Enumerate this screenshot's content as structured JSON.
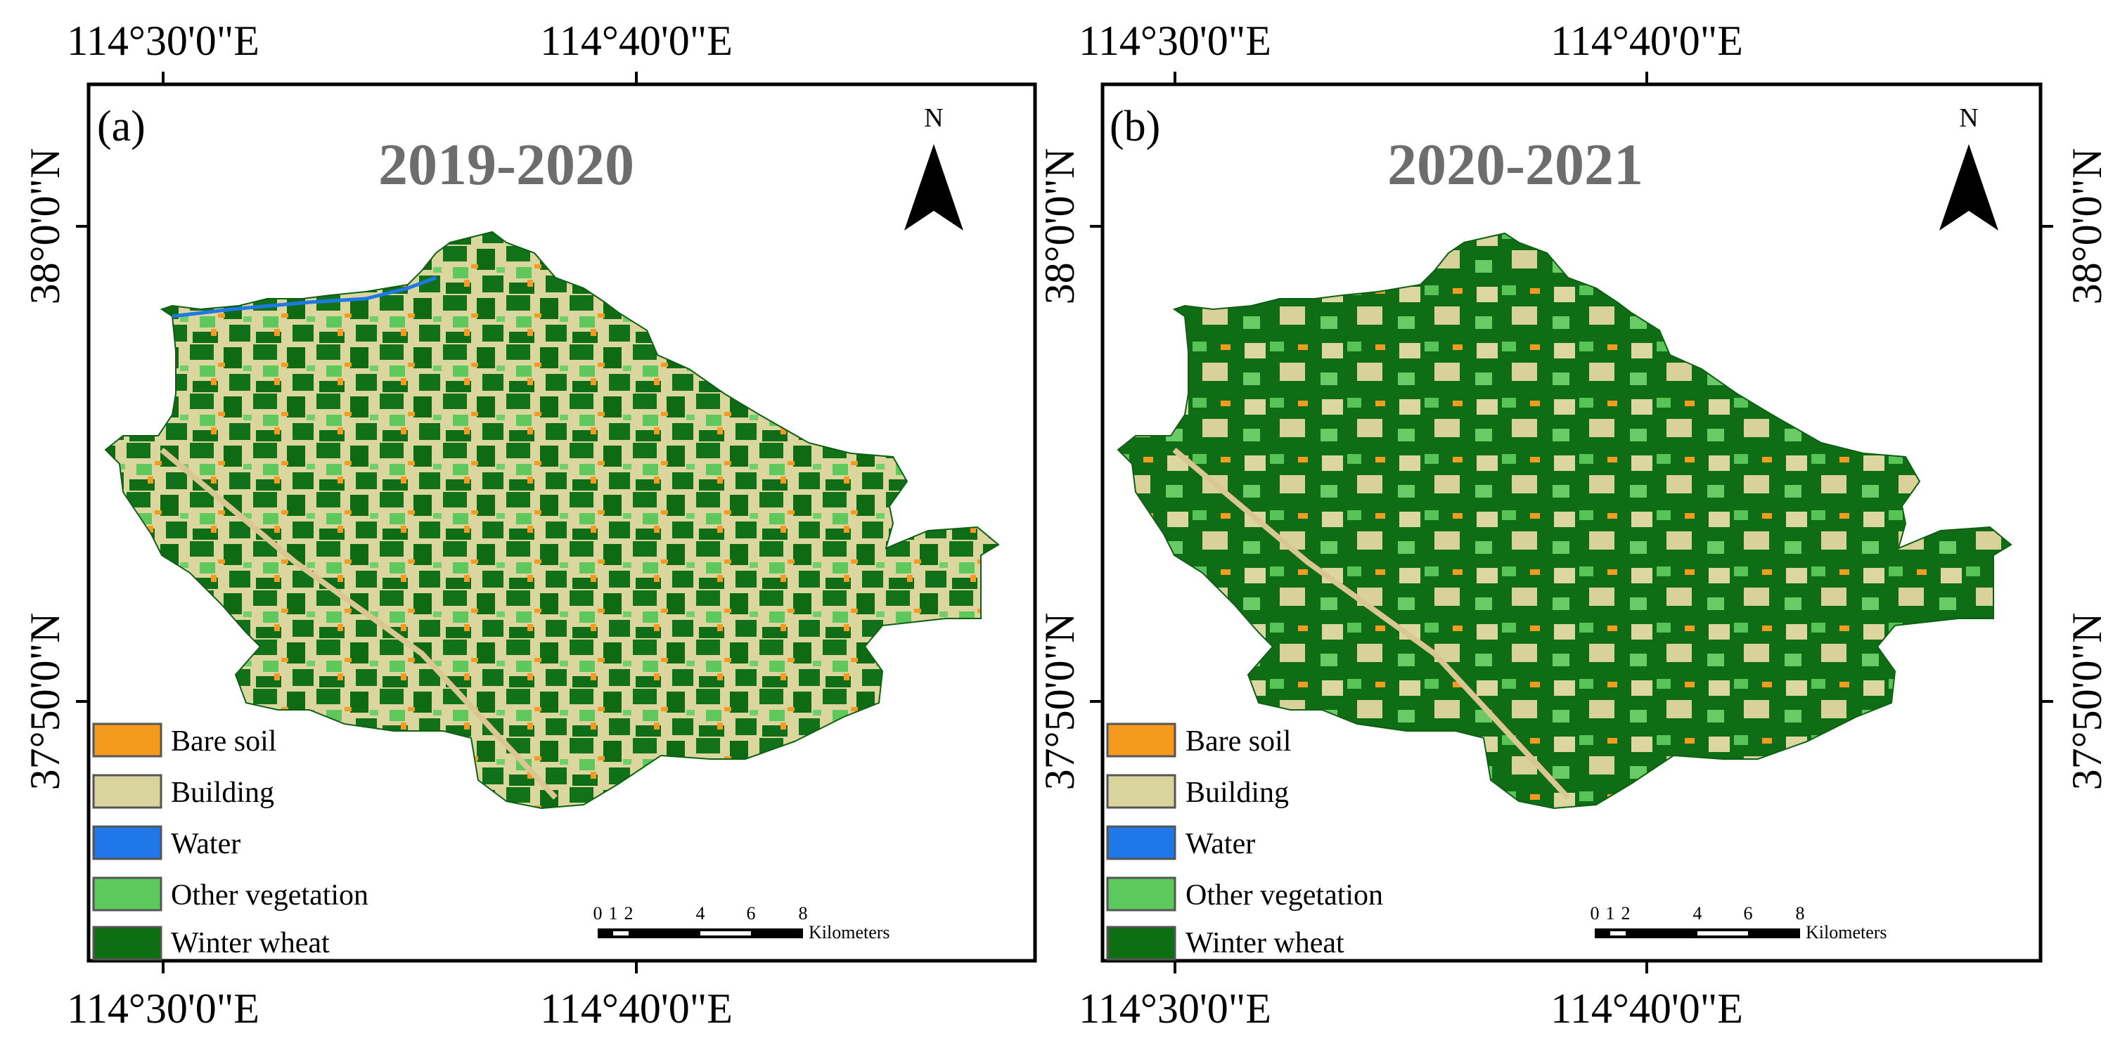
{
  "figure": {
    "panels": [
      {
        "tag": "(a)",
        "period": "2019-2020",
        "north_label": "N",
        "lon_top": [
          "114°30'0\"E",
          "114°40'0\"E"
        ],
        "lon_bottom": [
          "114°30'0\"E",
          "114°40'0\"E"
        ],
        "lat_left": [
          "38°0'0\"N",
          "37°50'0\"N"
        ],
        "lat_right": []
      },
      {
        "tag": "(b)",
        "period": "2020-2021",
        "north_label": "N",
        "lon_top": [
          "114°30'0\"E",
          "114°40'0\"E"
        ],
        "lon_bottom": [
          "114°30'0\"E",
          "114°40'0\"E"
        ],
        "lat_left": [
          "38°0'0\"N",
          "37°50'0\"N"
        ],
        "lat_right": [
          "38°0'0\"N",
          "37°50'0\"N"
        ]
      }
    ],
    "legend": [
      {
        "label": "Bare soil",
        "color": "#f59a1d"
      },
      {
        "label": "Building",
        "color": "#d9d49e"
      },
      {
        "label": "Water",
        "color": "#1f77e8"
      },
      {
        "label": "Other vegetation",
        "color": "#5cc95c"
      },
      {
        "label": "Winter wheat",
        "color": "#0e6e12"
      }
    ],
    "scale_bar": {
      "ticks": [
        "0",
        "1",
        "2",
        "4",
        "6",
        "8"
      ],
      "unit": "Kilometers"
    }
  }
}
